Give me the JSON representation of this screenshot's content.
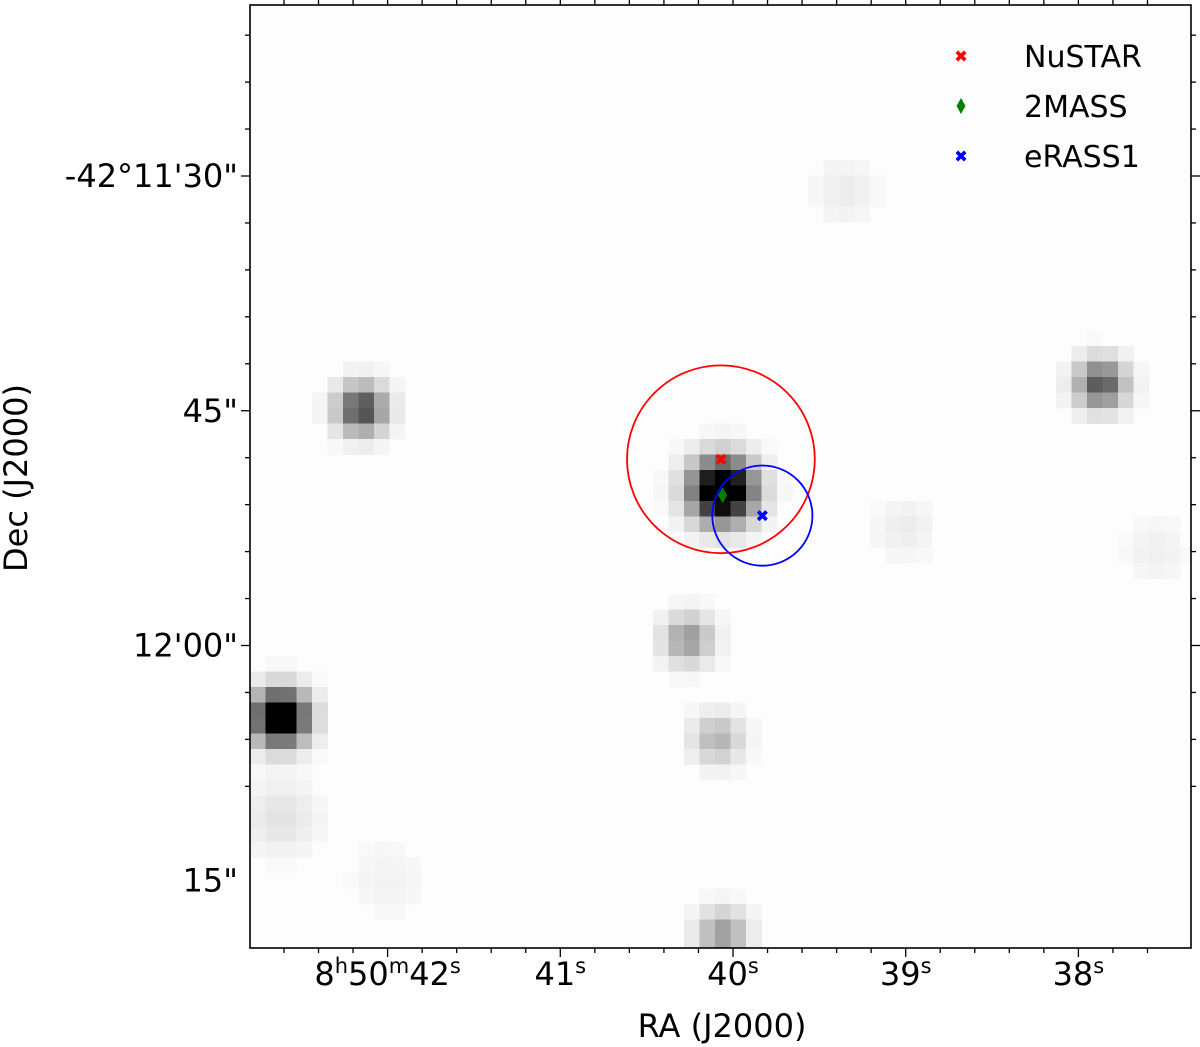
{
  "chart_data": {
    "type": "scatter",
    "title": "",
    "xlabel": "RA (J2000)",
    "ylabel": "Dec (J2000)",
    "grid": false,
    "legend_position": "top-right",
    "background": "greyscale sky image",
    "x_ticks": [
      {
        "h": "8",
        "m": "50",
        "s": "42"
      },
      {
        "s": "41"
      },
      {
        "s": "40"
      },
      {
        "s": "39"
      },
      {
        "s": "38"
      }
    ],
    "y_ticks": [
      "-42°11'30\"",
      "45\"",
      "12'00\"",
      "15\""
    ],
    "xlim_seconds": [
      42.6,
      37.4
    ],
    "ylim_arcsec_below": [
      18.0,
      70.0
    ],
    "series": [
      {
        "name": "NuSTAR",
        "marker": "X",
        "color": "#ff0000",
        "ra_s": 40.07,
        "dec_arcsec_below": 48.1,
        "circle_radius_arcsec": 6.0
      },
      {
        "name": "2MASS",
        "marker": "diamond",
        "color": "#008000",
        "ra_s": 40.06,
        "dec_arcsec_below": 50.4
      },
      {
        "name": "eRASS1",
        "marker": "X",
        "color": "#0000ff",
        "ra_s": 39.83,
        "dec_arcsec_below": 51.7,
        "circle_radius_arcsec": 3.2
      }
    ],
    "sources": [
      {
        "ra_s": 40.06,
        "dec_arcsec_below": 50.1,
        "peak": 1.0,
        "sigma": 1.4
      },
      {
        "ra_s": 42.15,
        "dec_arcsec_below": 44.9,
        "peak": 0.55,
        "sigma": 1.1
      },
      {
        "ra_s": 37.87,
        "dec_arcsec_below": 43.3,
        "peak": 0.5,
        "sigma": 1.1
      },
      {
        "ra_s": 42.62,
        "dec_arcsec_below": 64.6,
        "peak": 0.95,
        "sigma": 1.2
      },
      {
        "ra_s": 40.26,
        "dec_arcsec_below": 59.6,
        "peak": 0.3,
        "sigma": 1.1
      },
      {
        "ra_s": 40.09,
        "dec_arcsec_below": 66.0,
        "peak": 0.22,
        "sigma": 1.1
      },
      {
        "ra_s": 40.06,
        "dec_arcsec_below": 78.5,
        "peak": 0.3,
        "sigma": 1.1
      },
      {
        "ra_s": 39.35,
        "dec_arcsec_below": 31.0,
        "peak": 0.05,
        "sigma": 1.4
      },
      {
        "ra_s": 39.0,
        "dec_arcsec_below": 52.5,
        "peak": 0.05,
        "sigma": 1.3
      },
      {
        "ra_s": 37.55,
        "dec_arcsec_below": 54.0,
        "peak": 0.04,
        "sigma": 1.4
      },
      {
        "ra_s": 42.62,
        "dec_arcsec_below": 71.0,
        "peak": 0.08,
        "sigma": 1.6
      },
      {
        "ra_s": 42.0,
        "dec_arcsec_below": 75.0,
        "peak": 0.03,
        "sigma": 1.8
      }
    ]
  }
}
